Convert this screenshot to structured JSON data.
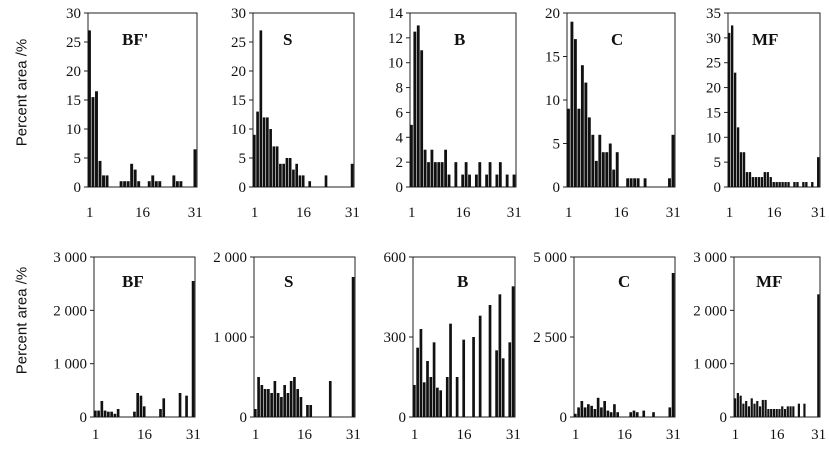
{
  "rows": [
    {
      "y_label": "Percent area /%"
    },
    {
      "y_label": "Percent area /%"
    }
  ],
  "colors": {
    "bar": "#111111",
    "frame": "#222222",
    "text": "#111111"
  },
  "chart_data": [
    {
      "type": "bar",
      "title": "BF'",
      "xlabel": "",
      "ylabel": "Percent area /%",
      "xlim": [
        1,
        31
      ],
      "ylim": [
        0,
        30
      ],
      "xticks": [
        "1",
        "16",
        "31"
      ],
      "yticks": [
        "0",
        "5",
        "10",
        "15",
        "20",
        "25",
        "30"
      ],
      "x": [
        1,
        2,
        3,
        4,
        5,
        6,
        7,
        8,
        9,
        10,
        11,
        12,
        13,
        14,
        15,
        16,
        17,
        18,
        19,
        20,
        21,
        22,
        23,
        24,
        25,
        26,
        27,
        28,
        29,
        30,
        31
      ],
      "values": [
        27,
        15.5,
        16.5,
        4.5,
        2,
        2,
        0,
        0,
        0,
        1,
        1,
        1,
        4,
        3,
        1,
        0,
        0,
        1,
        2,
        1,
        1,
        0,
        0,
        0,
        2,
        1,
        1,
        0,
        0,
        0,
        6.5
      ]
    },
    {
      "type": "bar",
      "title": "S",
      "xlabel": "",
      "ylabel": "",
      "xlim": [
        1,
        31
      ],
      "ylim": [
        0,
        30
      ],
      "xticks": [
        "1",
        "16",
        "31"
      ],
      "yticks": [
        "0",
        "5",
        "10",
        "15",
        "20",
        "25",
        "30"
      ],
      "x": [
        1,
        2,
        3,
        4,
        5,
        6,
        7,
        8,
        9,
        10,
        11,
        12,
        13,
        14,
        15,
        16,
        17,
        18,
        19,
        20,
        21,
        22,
        23,
        24,
        25,
        26,
        27,
        28,
        29,
        30,
        31
      ],
      "values": [
        9,
        13,
        27,
        12,
        12,
        10,
        7,
        7,
        4,
        4,
        5,
        5,
        3,
        4,
        2,
        2,
        0,
        1,
        0,
        0,
        0,
        0,
        2,
        0,
        0,
        0,
        0,
        0,
        0,
        0,
        4
      ]
    },
    {
      "type": "bar",
      "title": "B",
      "xlabel": "",
      "ylabel": "",
      "xlim": [
        1,
        31
      ],
      "ylim": [
        0,
        14
      ],
      "xticks": [
        "1",
        "16",
        "31"
      ],
      "yticks": [
        "0",
        "2",
        "4",
        "6",
        "8",
        "10",
        "12",
        "14"
      ],
      "x": [
        1,
        2,
        3,
        4,
        5,
        6,
        7,
        8,
        9,
        10,
        11,
        12,
        13,
        14,
        15,
        16,
        17,
        18,
        19,
        20,
        21,
        22,
        23,
        24,
        25,
        26,
        27,
        28,
        29,
        30,
        31
      ],
      "values": [
        5,
        12.5,
        13,
        11,
        3,
        2,
        3,
        2,
        2,
        2,
        3,
        1,
        0,
        2,
        0,
        1,
        2,
        1,
        0,
        1,
        2,
        0,
        1,
        2,
        0,
        1,
        2,
        0,
        1,
        0,
        1
      ]
    },
    {
      "type": "bar",
      "title": "C",
      "xlabel": "",
      "ylabel": "",
      "xlim": [
        1,
        31
      ],
      "ylim": [
        0,
        20
      ],
      "xticks": [
        "1",
        "16",
        "31"
      ],
      "yticks": [
        "0",
        "5",
        "10",
        "15",
        "20"
      ],
      "x": [
        1,
        2,
        3,
        4,
        5,
        6,
        7,
        8,
        9,
        10,
        11,
        12,
        13,
        14,
        15,
        16,
        17,
        18,
        19,
        20,
        21,
        22,
        23,
        24,
        25,
        26,
        27,
        28,
        29,
        30,
        31
      ],
      "values": [
        9,
        19,
        17,
        9,
        14,
        12,
        8,
        6,
        3,
        6,
        4,
        4,
        5,
        2,
        4,
        0,
        0,
        1,
        1,
        1,
        1,
        0,
        1,
        0,
        0,
        0,
        0,
        0,
        0,
        1,
        6
      ]
    },
    {
      "type": "bar",
      "title": "MF",
      "xlabel": "",
      "ylabel": "",
      "xlim": [
        1,
        31
      ],
      "ylim": [
        0,
        35
      ],
      "xticks": [
        "1",
        "16",
        "31"
      ],
      "yticks": [
        "0",
        "5",
        "10",
        "15",
        "20",
        "25",
        "30",
        "35"
      ],
      "x": [
        1,
        2,
        3,
        4,
        5,
        6,
        7,
        8,
        9,
        10,
        11,
        12,
        13,
        14,
        15,
        16,
        17,
        18,
        19,
        20,
        21,
        22,
        23,
        24,
        25,
        26,
        27,
        28,
        29,
        30,
        31
      ],
      "values": [
        31,
        32.5,
        23,
        12,
        7,
        7,
        3,
        3,
        2,
        2,
        2,
        2,
        3,
        3,
        2,
        1,
        1,
        1,
        1,
        1,
        1,
        0,
        1,
        1,
        0,
        1,
        1,
        0,
        1,
        0,
        6
      ]
    },
    {
      "type": "bar",
      "title": "BF",
      "xlabel": "",
      "ylabel": "Percent area /%",
      "xlim": [
        1,
        31
      ],
      "ylim": [
        0,
        3000
      ],
      "xticks": [
        "1",
        "16",
        "31"
      ],
      "yticks": [
        "0",
        "1 000",
        "2 000",
        "3 000"
      ],
      "x": [
        1,
        2,
        3,
        4,
        5,
        6,
        7,
        8,
        9,
        10,
        11,
        12,
        13,
        14,
        15,
        16,
        17,
        18,
        19,
        20,
        21,
        22,
        23,
        24,
        25,
        26,
        27,
        28,
        29,
        30,
        31
      ],
      "values": [
        120,
        120,
        300,
        120,
        100,
        100,
        60,
        150,
        0,
        0,
        0,
        0,
        100,
        450,
        400,
        200,
        0,
        0,
        0,
        0,
        150,
        350,
        0,
        0,
        0,
        0,
        450,
        0,
        400,
        0,
        2550
      ]
    },
    {
      "type": "bar",
      "title": "S",
      "xlabel": "",
      "ylabel": "",
      "xlim": [
        1,
        31
      ],
      "ylim": [
        0,
        2000
      ],
      "xticks": [
        "1",
        "16",
        "31"
      ],
      "yticks": [
        "0",
        "1 000",
        "2 000"
      ],
      "x": [
        1,
        2,
        3,
        4,
        5,
        6,
        7,
        8,
        9,
        10,
        11,
        12,
        13,
        14,
        15,
        16,
        17,
        18,
        19,
        20,
        21,
        22,
        23,
        24,
        25,
        26,
        27,
        28,
        29,
        30,
        31
      ],
      "values": [
        100,
        500,
        400,
        350,
        350,
        300,
        450,
        300,
        250,
        400,
        300,
        450,
        500,
        350,
        250,
        0,
        150,
        150,
        0,
        0,
        0,
        0,
        0,
        450,
        0,
        0,
        0,
        0,
        0,
        0,
        1750
      ]
    },
    {
      "type": "bar",
      "title": "B",
      "xlabel": "",
      "ylabel": "",
      "xlim": [
        1,
        31
      ],
      "ylim": [
        0,
        600
      ],
      "xticks": [
        "1",
        "16",
        "31"
      ],
      "yticks": [
        "0",
        "300",
        "600"
      ],
      "x": [
        1,
        2,
        3,
        4,
        5,
        6,
        7,
        8,
        9,
        10,
        11,
        12,
        13,
        14,
        15,
        16,
        17,
        18,
        19,
        20,
        21,
        22,
        23,
        24,
        25,
        26,
        27,
        28,
        29,
        30,
        31
      ],
      "values": [
        120,
        260,
        330,
        130,
        210,
        150,
        280,
        110,
        100,
        0,
        150,
        350,
        0,
        150,
        0,
        290,
        0,
        0,
        300,
        0,
        380,
        0,
        0,
        420,
        0,
        250,
        460,
        220,
        0,
        280,
        490
      ]
    },
    {
      "type": "bar",
      "title": "C",
      "xlabel": "",
      "ylabel": "",
      "xlim": [
        1,
        31
      ],
      "ylim": [
        0,
        5000
      ],
      "xticks": [
        "1",
        "16",
        "31"
      ],
      "yticks": [
        "0",
        "2 500",
        "5 000"
      ],
      "x": [
        1,
        2,
        3,
        4,
        5,
        6,
        7,
        8,
        9,
        10,
        11,
        12,
        13,
        14,
        15,
        16,
        17,
        18,
        19,
        20,
        21,
        22,
        23,
        24,
        25,
        26,
        27,
        28,
        29,
        30,
        31
      ],
      "values": [
        100,
        300,
        500,
        300,
        400,
        350,
        250,
        600,
        300,
        500,
        200,
        150,
        400,
        150,
        0,
        0,
        0,
        150,
        200,
        150,
        0,
        200,
        0,
        0,
        150,
        0,
        0,
        0,
        0,
        300,
        4500
      ]
    },
    {
      "type": "bar",
      "title": "MF",
      "xlabel": "",
      "ylabel": "",
      "xlim": [
        1,
        31
      ],
      "ylim": [
        0,
        3000
      ],
      "xticks": [
        "1",
        "16",
        "31"
      ],
      "yticks": [
        "0",
        "1 000",
        "2 000",
        "3 000"
      ],
      "x": [
        1,
        2,
        3,
        4,
        5,
        6,
        7,
        8,
        9,
        10,
        11,
        12,
        13,
        14,
        15,
        16,
        17,
        18,
        19,
        20,
        21,
        22,
        23,
        24,
        25,
        26,
        27,
        28,
        29,
        30,
        31
      ],
      "values": [
        350,
        450,
        400,
        250,
        300,
        200,
        350,
        250,
        300,
        200,
        320,
        320,
        150,
        150,
        150,
        150,
        150,
        200,
        150,
        200,
        200,
        200,
        0,
        250,
        0,
        250,
        0,
        0,
        0,
        0,
        2300
      ]
    }
  ]
}
